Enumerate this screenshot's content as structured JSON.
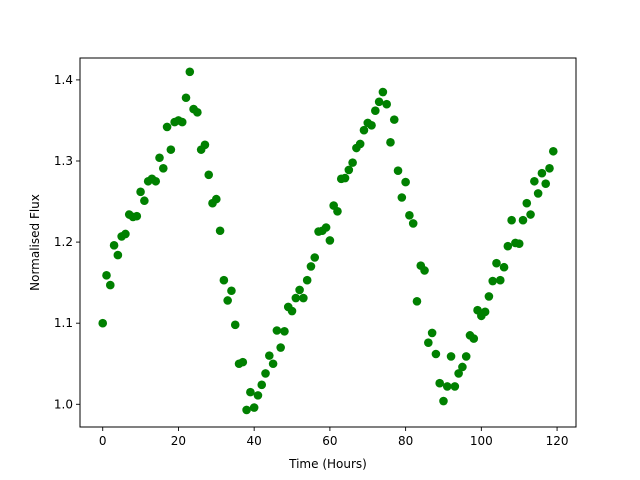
{
  "chart_data": {
    "type": "scatter",
    "xlabel": "Time (Hours)",
    "ylabel": "Normalised Flux",
    "xlim": [
      -6,
      125
    ],
    "ylim": [
      0.972,
      1.427
    ],
    "xticks": [
      0,
      20,
      40,
      60,
      80,
      100,
      120
    ],
    "yticks": [
      1.0,
      1.1,
      1.2,
      1.3,
      1.4
    ],
    "xtick_labels": [
      "0",
      "20",
      "40",
      "60",
      "80",
      "100",
      "120"
    ],
    "ytick_labels": [
      "1.0",
      "1.1",
      "1.2",
      "1.3",
      "1.4"
    ],
    "grid": false,
    "marker_color": "#008000",
    "series": [
      {
        "x": [
          0,
          1,
          2,
          3,
          4,
          5,
          6,
          7,
          8,
          9,
          10,
          11,
          12,
          13,
          14,
          15,
          16,
          17,
          18,
          19,
          20,
          21,
          22,
          23,
          24,
          25,
          26,
          27,
          28,
          29,
          30,
          31,
          32,
          33,
          34,
          35,
          36,
          37,
          38,
          39,
          40,
          41,
          42,
          43,
          44,
          45,
          46,
          47,
          48,
          49,
          50,
          51,
          52,
          53,
          54,
          55,
          56,
          57,
          58,
          59,
          60,
          61,
          62,
          63,
          64,
          65,
          66,
          67,
          68,
          69,
          70,
          71,
          72,
          73,
          74,
          75,
          76,
          77,
          78,
          79,
          80,
          81,
          82,
          83,
          84,
          85,
          86,
          87,
          88,
          89,
          90,
          91,
          92,
          93,
          94,
          95,
          96,
          97,
          98,
          99,
          100,
          101,
          102,
          103,
          104,
          105,
          106,
          107,
          108,
          109,
          110,
          111,
          112,
          113,
          114,
          115,
          116,
          117,
          118,
          119
        ],
        "y": [
          1.1,
          1.159,
          1.147,
          1.196,
          1.184,
          1.207,
          1.21,
          1.234,
          1.231,
          1.232,
          1.262,
          1.251,
          1.275,
          1.278,
          1.275,
          1.304,
          1.291,
          1.342,
          1.314,
          1.348,
          1.35,
          1.348,
          1.378,
          1.41,
          1.364,
          1.36,
          1.314,
          1.32,
          1.283,
          1.248,
          1.253,
          1.214,
          1.153,
          1.128,
          1.14,
          1.098,
          1.05,
          1.052,
          0.993,
          1.015,
          0.996,
          1.011,
          1.024,
          1.038,
          1.06,
          1.05,
          1.091,
          1.07,
          1.09,
          1.12,
          1.115,
          1.131,
          1.141,
          1.131,
          1.153,
          1.17,
          1.181,
          1.213,
          1.214,
          1.218,
          1.202,
          1.245,
          1.238,
          1.278,
          1.279,
          1.289,
          1.298,
          1.316,
          1.321,
          1.338,
          1.347,
          1.344,
          1.362,
          1.373,
          1.385,
          1.37,
          1.323,
          1.351,
          1.288,
          1.255,
          1.274,
          1.233,
          1.223,
          1.127,
          1.171,
          1.165,
          1.076,
          1.088,
          1.062,
          1.026,
          1.004,
          1.022,
          1.059,
          1.022,
          1.038,
          1.046,
          1.059,
          1.085,
          1.081,
          1.116,
          1.109,
          1.114,
          1.133,
          1.152,
          1.174,
          1.153,
          1.169,
          1.195,
          1.227,
          1.199,
          1.198,
          1.227,
          1.248,
          1.234,
          1.275,
          1.26,
          1.285,
          1.272,
          1.291,
          1.312
        ]
      }
    ]
  }
}
